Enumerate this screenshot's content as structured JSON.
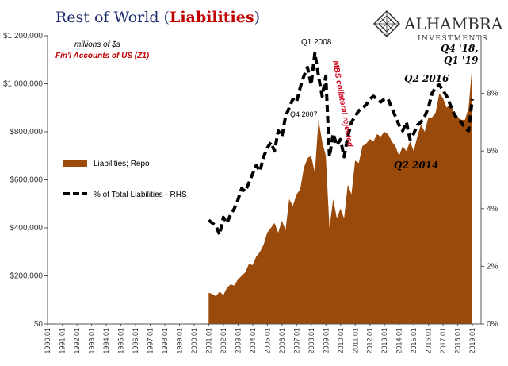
{
  "brand": {
    "name": "ALHAMBRA",
    "tagline": "INVESTMENTS"
  },
  "chart_data": {
    "type": "area",
    "title": "Rest of World",
    "title_highlight": "Liabilities",
    "subtitle": "millions of $s",
    "source": "Fin'l Accounts of US (Z1)",
    "x_tick_labels": [
      "1990.01",
      "1991.01",
      "1992.01",
      "1993.01",
      "1994.01",
      "1995.01",
      "1996.01",
      "1997.01",
      "1998.01",
      "1999.01",
      "2000.01",
      "2001.01",
      "2002.01",
      "2003.01",
      "2004.01",
      "2005.01",
      "2006.01",
      "2007.01",
      "2008.01",
      "2009.01",
      "2010.01",
      "2011.01",
      "2012.01",
      "2013.01",
      "2014.01",
      "2015.01",
      "2016.01",
      "2017.01",
      "2018.01",
      "2019.01"
    ],
    "y_left": {
      "min": 0,
      "max": 1200000,
      "tick_values": [
        0,
        200000,
        400000,
        600000,
        800000,
        1000000,
        1200000
      ],
      "tick_labels": [
        "$0",
        "$200,000",
        "$400,000",
        "$600,000",
        "$800,000",
        "$1,000,000",
        "$1,200,000"
      ]
    },
    "y_right": {
      "min": 0,
      "max": 10,
      "tick_values": [
        0,
        2,
        4,
        6,
        8
      ],
      "tick_labels": [
        "0%",
        "2%",
        "4%",
        "6%",
        "8%"
      ]
    },
    "legend": [
      {
        "name": "Liabilities; Repo",
        "style": "area",
        "color": "#9a4a0b"
      },
      {
        "name": "% of Total Liabilities - RHS",
        "style": "dashed",
        "color": "#000000"
      }
    ],
    "annotations": [
      {
        "text": "Q1 2008",
        "color": "#000000"
      },
      {
        "text": "Q4 2007",
        "color": "#000000"
      },
      {
        "text": "MBS collateral rejected",
        "color": "#d0021b"
      },
      {
        "text": "Q2 2016",
        "color": "#000000"
      },
      {
        "text": "Q4 '18,",
        "color": "#000000"
      },
      {
        "text": "Q1 '19",
        "color": "#000000"
      },
      {
        "text": "Q2 2014",
        "color": "#000000"
      }
    ],
    "colors": {
      "area": "#9a4a0b",
      "title": "#1f2f6b",
      "highlight": "#c00000"
    },
    "series": [
      {
        "name": "Liabilities; Repo",
        "axis": "left",
        "x": [
          2001.0,
          2001.25,
          2001.5,
          2001.75,
          2002.0,
          2002.25,
          2002.5,
          2002.75,
          2003.0,
          2003.25,
          2003.5,
          2003.75,
          2004.0,
          2004.25,
          2004.5,
          2004.75,
          2005.0,
          2005.25,
          2005.5,
          2005.75,
          2006.0,
          2006.25,
          2006.5,
          2006.75,
          2007.0,
          2007.25,
          2007.5,
          2007.75,
          2008.0,
          2008.25,
          2008.5,
          2008.75,
          2009.0,
          2009.25,
          2009.5,
          2009.75,
          2010.0,
          2010.25,
          2010.5,
          2010.75,
          2011.0,
          2011.25,
          2011.5,
          2011.75,
          2012.0,
          2012.25,
          2012.5,
          2012.75,
          2013.0,
          2013.25,
          2013.5,
          2013.75,
          2014.0,
          2014.25,
          2014.5,
          2014.75,
          2015.0,
          2015.25,
          2015.5,
          2015.75,
          2016.0,
          2016.25,
          2016.5,
          2016.75,
          2017.0,
          2017.25,
          2017.5,
          2017.75,
          2018.0,
          2018.25,
          2018.5,
          2018.75,
          2019.0
        ],
        "values": [
          130000,
          125000,
          115000,
          135000,
          120000,
          150000,
          165000,
          160000,
          185000,
          200000,
          215000,
          250000,
          245000,
          280000,
          300000,
          330000,
          380000,
          400000,
          420000,
          380000,
          430000,
          390000,
          520000,
          490000,
          540000,
          560000,
          650000,
          690000,
          700000,
          630000,
          850000,
          760000,
          700000,
          400000,
          520000,
          440000,
          480000,
          440000,
          580000,
          540000,
          680000,
          670000,
          740000,
          750000,
          770000,
          760000,
          790000,
          780000,
          800000,
          790000,
          760000,
          740000,
          700000,
          740000,
          720000,
          760000,
          720000,
          780000,
          830000,
          800000,
          860000,
          860000,
          880000,
          960000,
          940000,
          900000,
          920000,
          880000,
          860000,
          850000,
          850000,
          900000,
          1080000
        ]
      },
      {
        "name": "% of Total Liabilities - RHS",
        "axis": "right",
        "x": [
          2001.0,
          2001.25,
          2001.5,
          2001.75,
          2002.0,
          2002.25,
          2002.5,
          2002.75,
          2003.0,
          2003.25,
          2003.5,
          2003.75,
          2004.0,
          2004.25,
          2004.5,
          2004.75,
          2005.0,
          2005.25,
          2005.5,
          2005.75,
          2006.0,
          2006.25,
          2006.5,
          2006.75,
          2007.0,
          2007.25,
          2007.5,
          2007.75,
          2008.0,
          2008.25,
          2008.5,
          2008.75,
          2009.0,
          2009.25,
          2009.5,
          2009.75,
          2010.0,
          2010.25,
          2010.5,
          2010.75,
          2011.0,
          2011.25,
          2011.5,
          2011.75,
          2012.0,
          2012.25,
          2012.5,
          2012.75,
          2013.0,
          2013.25,
          2013.5,
          2013.75,
          2014.0,
          2014.25,
          2014.5,
          2014.75,
          2015.0,
          2015.25,
          2015.5,
          2015.75,
          2016.0,
          2016.25,
          2016.5,
          2016.75,
          2017.0,
          2017.25,
          2017.5,
          2017.75,
          2018.0,
          2018.25,
          2018.5,
          2018.75,
          2019.0
        ],
        "values": [
          3.6,
          3.5,
          3.4,
          3.1,
          3.7,
          3.5,
          3.8,
          4.0,
          4.3,
          4.7,
          4.6,
          4.9,
          5.2,
          5.5,
          5.3,
          5.8,
          6.1,
          6.3,
          6.0,
          6.7,
          6.5,
          7.2,
          7.5,
          7.8,
          7.7,
          8.2,
          8.6,
          8.9,
          8.3,
          9.4,
          8.6,
          7.9,
          8.6,
          5.8,
          6.6,
          6.2,
          6.4,
          5.8,
          6.5,
          7.0,
          7.2,
          7.4,
          7.5,
          7.6,
          7.8,
          7.9,
          7.8,
          7.7,
          7.8,
          7.8,
          7.5,
          7.2,
          6.9,
          6.7,
          7.0,
          6.4,
          6.6,
          6.9,
          7.0,
          7.2,
          7.5,
          8.0,
          8.2,
          8.3,
          8.1,
          7.9,
          7.6,
          7.3,
          7.1,
          7.0,
          6.8,
          6.7,
          7.8
        ]
      }
    ]
  }
}
